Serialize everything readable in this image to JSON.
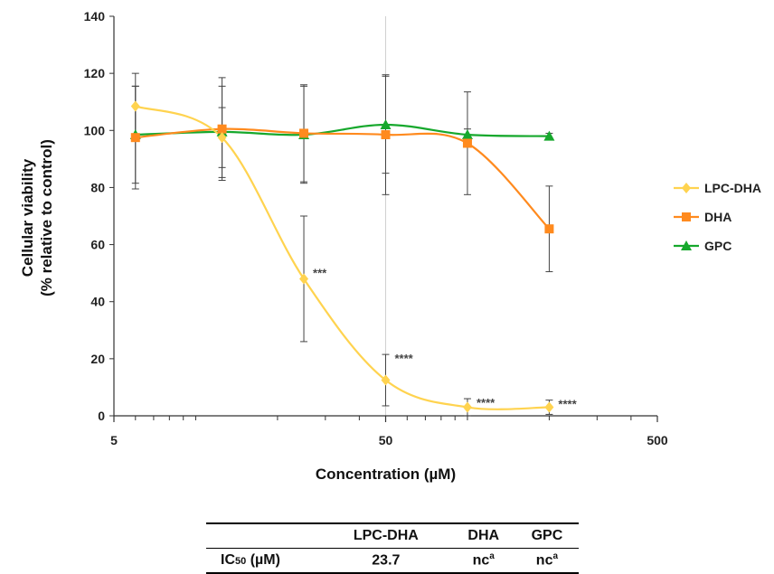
{
  "chart_data": {
    "type": "line",
    "xscale": "log",
    "xlim": [
      5,
      500
    ],
    "ylim": [
      0,
      140
    ],
    "xticks": [
      5,
      50,
      500
    ],
    "yticks": [
      0,
      20,
      40,
      60,
      80,
      100,
      120,
      140
    ],
    "xlabel": "Concentration (µM)",
    "ylabel_line1": "Cellular viability",
    "ylabel_line2": "(% relative to control)",
    "legend_position": "right",
    "reference_line_x": 50,
    "series": [
      {
        "name": "LPC-DHA",
        "color": "#FFD34F",
        "marker": "diamond",
        "x": [
          6,
          12.5,
          25,
          50,
          100,
          200
        ],
        "y": [
          108.5,
          97.5,
          48,
          12.5,
          3,
          3
        ],
        "err": [
          11.5,
          10.5,
          22,
          9,
          3,
          2.5
        ],
        "annotations": [
          "",
          "",
          "***",
          "****",
          "****",
          "****"
        ]
      },
      {
        "name": "DHA",
        "color": "#FF8A1E",
        "marker": "square",
        "x": [
          6,
          12.5,
          25,
          50,
          100,
          200
        ],
        "y": [
          97.5,
          100.5,
          99,
          98.5,
          95.5,
          65.5
        ],
        "err": [
          18,
          18,
          17,
          21,
          18,
          15
        ],
        "annotations": [
          "",
          "",
          "",
          "",
          "",
          ""
        ]
      },
      {
        "name": "GPC",
        "color": "#16A82C",
        "marker": "triangle",
        "x": [
          6,
          12.5,
          25,
          50,
          100,
          200
        ],
        "y": [
          98.5,
          99.5,
          98.5,
          102,
          98.5,
          98
        ],
        "err": [
          17,
          16,
          17,
          17,
          2,
          1
        ],
        "annotations": [
          "",
          "",
          "",
          "",
          "",
          ""
        ]
      }
    ]
  },
  "table": {
    "columns": [
      "LPC-DHA",
      "DHA",
      "GPC"
    ],
    "row_label_main": "IC",
    "row_label_sub": "50",
    "row_label_tail": " (µM)",
    "values": [
      {
        "main": "23.7",
        "sup": ""
      },
      {
        "main": "nc",
        "sup": "a"
      },
      {
        "main": "nc",
        "sup": "a"
      }
    ]
  }
}
